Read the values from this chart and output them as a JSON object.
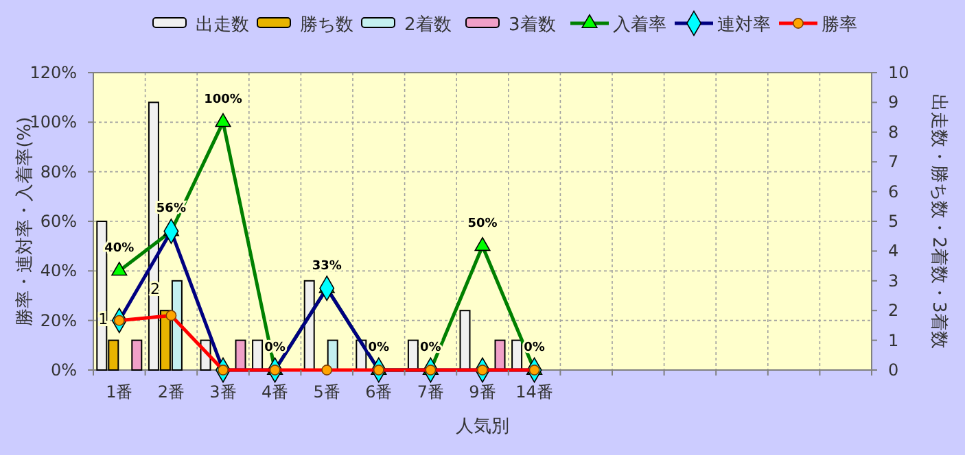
{
  "chart_data": {
    "type": "bar",
    "xlabel": "人気別",
    "ylabel": "勝率・連対率・入着率(%)",
    "y2label": "出走数・勝ち数・2着数・3着数",
    "categories": [
      "1番",
      "2番",
      "3番",
      "4番",
      "5番",
      "6番",
      "7番",
      "9番",
      "14番",
      null,
      null,
      null,
      null,
      null,
      null
    ],
    "ylim": [
      0,
      120
    ],
    "yticks": [
      {
        "value": 0,
        "label": "0%"
      },
      {
        "value": 20,
        "label": "20%"
      },
      {
        "value": 40,
        "label": "40%"
      },
      {
        "value": 60,
        "label": "60%"
      },
      {
        "value": 80,
        "label": "80%"
      },
      {
        "value": 100,
        "label": "100%"
      },
      {
        "value": 120,
        "label": "120%"
      }
    ],
    "y2lim": [
      0,
      10
    ],
    "y2ticks": [
      0,
      1,
      2,
      3,
      4,
      5,
      6,
      7,
      8,
      9,
      10
    ],
    "grid": true,
    "legend": "top",
    "series": [
      {
        "name": "出走数",
        "axis": "y2",
        "color": "#f0f0f0",
        "values": [
          5,
          9,
          1,
          1,
          3,
          1,
          1,
          2,
          1,
          null,
          null,
          null,
          null,
          null,
          null
        ]
      },
      {
        "name": "勝ち数",
        "axis": "y2",
        "color": "#e8b400",
        "values": [
          1,
          2,
          0,
          0,
          0,
          0,
          0,
          0,
          0,
          null,
          null,
          null,
          null,
          null,
          null
        ],
        "value_labels": [
          "1",
          "2",
          null,
          null,
          null,
          null,
          null,
          null,
          null,
          null,
          null,
          null,
          null,
          null,
          null
        ]
      },
      {
        "name": "2着数",
        "axis": "y2",
        "color": "#c4f0f0",
        "values": [
          0,
          3,
          0,
          0,
          1,
          0,
          0,
          0,
          0,
          null,
          null,
          null,
          null,
          null,
          null
        ]
      },
      {
        "name": "3着数",
        "axis": "y2",
        "color": "#f0a0c8",
        "values": [
          1,
          0,
          1,
          0,
          0,
          0,
          0,
          1,
          0,
          null,
          null,
          null,
          null,
          null,
          null
        ]
      },
      {
        "name": "入着率",
        "type": "line",
        "color": "#008000",
        "marker": "triangle",
        "values": [
          40,
          56,
          100,
          0,
          33,
          0,
          0,
          50,
          0,
          null,
          null,
          null,
          null,
          null,
          null
        ],
        "value_labels": [
          "40%",
          "56%",
          "100%",
          "0%",
          "33%",
          "0%",
          "0%",
          "50%",
          "0%",
          null,
          null,
          null,
          null,
          null,
          null
        ]
      },
      {
        "name": "連対率",
        "type": "line",
        "color": "#000080",
        "marker": "diamond",
        "values": [
          20,
          56,
          0,
          0,
          33,
          0,
          0,
          0,
          0,
          null,
          null,
          null,
          null,
          null,
          null
        ]
      },
      {
        "name": "勝率",
        "type": "line",
        "color": "#ff0000",
        "marker": "circle",
        "values": [
          20,
          22,
          0,
          0,
          0,
          0,
          0,
          0,
          0,
          null,
          null,
          null,
          null,
          null,
          null
        ]
      }
    ]
  }
}
